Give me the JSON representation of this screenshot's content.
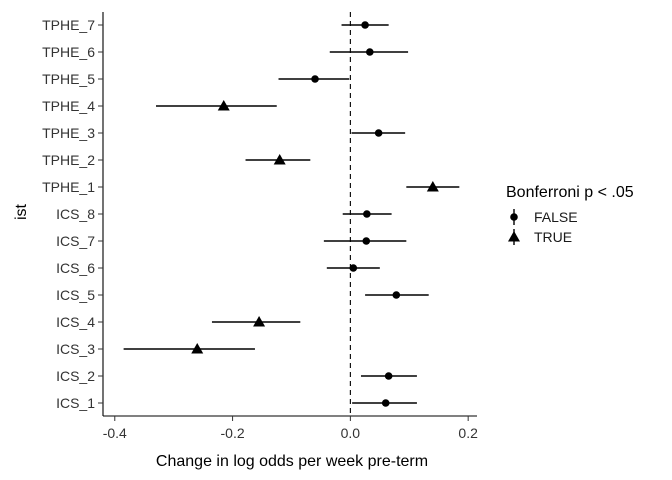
{
  "chart_data": {
    "type": "scatter",
    "subtype": "forest-plot",
    "title": "",
    "xlabel": "Change in log odds per week pre-term",
    "ylabel": "ist",
    "xlim": [
      -0.42,
      0.215
    ],
    "xticks": [
      -0.4,
      -0.2,
      0.0,
      0.2
    ],
    "xtick_labels": [
      "-0.4",
      "-0.2",
      "0.0",
      "0.2"
    ],
    "reference_line": {
      "x": 0.0,
      "style": "dashed"
    },
    "grid": false,
    "legend": {
      "title": "Bonferroni p < .05",
      "placement": "right",
      "entries": [
        {
          "label": "FALSE",
          "marker": "circle"
        },
        {
          "label": "TRUE",
          "marker": "triangle"
        }
      ]
    },
    "categories": [
      "TPHE_7",
      "TPHE_6",
      "TPHE_5",
      "TPHE_4",
      "TPHE_3",
      "TPHE_2",
      "TPHE_1",
      "ICS_8",
      "ICS_7",
      "ICS_6",
      "ICS_5",
      "ICS_4",
      "ICS_3",
      "ICS_2",
      "ICS_1"
    ],
    "points": [
      {
        "label": "TPHE_7",
        "estimate": 0.025,
        "lower": -0.015,
        "upper": 0.065,
        "significant": "FALSE"
      },
      {
        "label": "TPHE_6",
        "estimate": 0.033,
        "lower": -0.035,
        "upper": 0.098,
        "significant": "FALSE"
      },
      {
        "label": "TPHE_5",
        "estimate": -0.06,
        "lower": -0.122,
        "upper": -0.002,
        "significant": "FALSE"
      },
      {
        "label": "TPHE_4",
        "estimate": -0.215,
        "lower": -0.33,
        "upper": -0.125,
        "significant": "TRUE"
      },
      {
        "label": "TPHE_3",
        "estimate": 0.048,
        "lower": 0.002,
        "upper": 0.093,
        "significant": "FALSE"
      },
      {
        "label": "TPHE_2",
        "estimate": -0.12,
        "lower": -0.178,
        "upper": -0.068,
        "significant": "TRUE"
      },
      {
        "label": "TPHE_1",
        "estimate": 0.14,
        "lower": 0.095,
        "upper": 0.185,
        "significant": "TRUE"
      },
      {
        "label": "ICS_8",
        "estimate": 0.028,
        "lower": -0.013,
        "upper": 0.07,
        "significant": "FALSE"
      },
      {
        "label": "ICS_7",
        "estimate": 0.027,
        "lower": -0.045,
        "upper": 0.095,
        "significant": "FALSE"
      },
      {
        "label": "ICS_6",
        "estimate": 0.005,
        "lower": -0.04,
        "upper": 0.05,
        "significant": "FALSE"
      },
      {
        "label": "ICS_5",
        "estimate": 0.078,
        "lower": 0.025,
        "upper": 0.133,
        "significant": "FALSE"
      },
      {
        "label": "ICS_4",
        "estimate": -0.155,
        "lower": -0.235,
        "upper": -0.085,
        "significant": "TRUE"
      },
      {
        "label": "ICS_3",
        "estimate": -0.26,
        "lower": -0.385,
        "upper": -0.162,
        "significant": "TRUE"
      },
      {
        "label": "ICS_2",
        "estimate": 0.065,
        "lower": 0.018,
        "upper": 0.113,
        "significant": "FALSE"
      },
      {
        "label": "ICS_1",
        "estimate": 0.06,
        "lower": 0.003,
        "upper": 0.113,
        "significant": "FALSE"
      }
    ]
  }
}
